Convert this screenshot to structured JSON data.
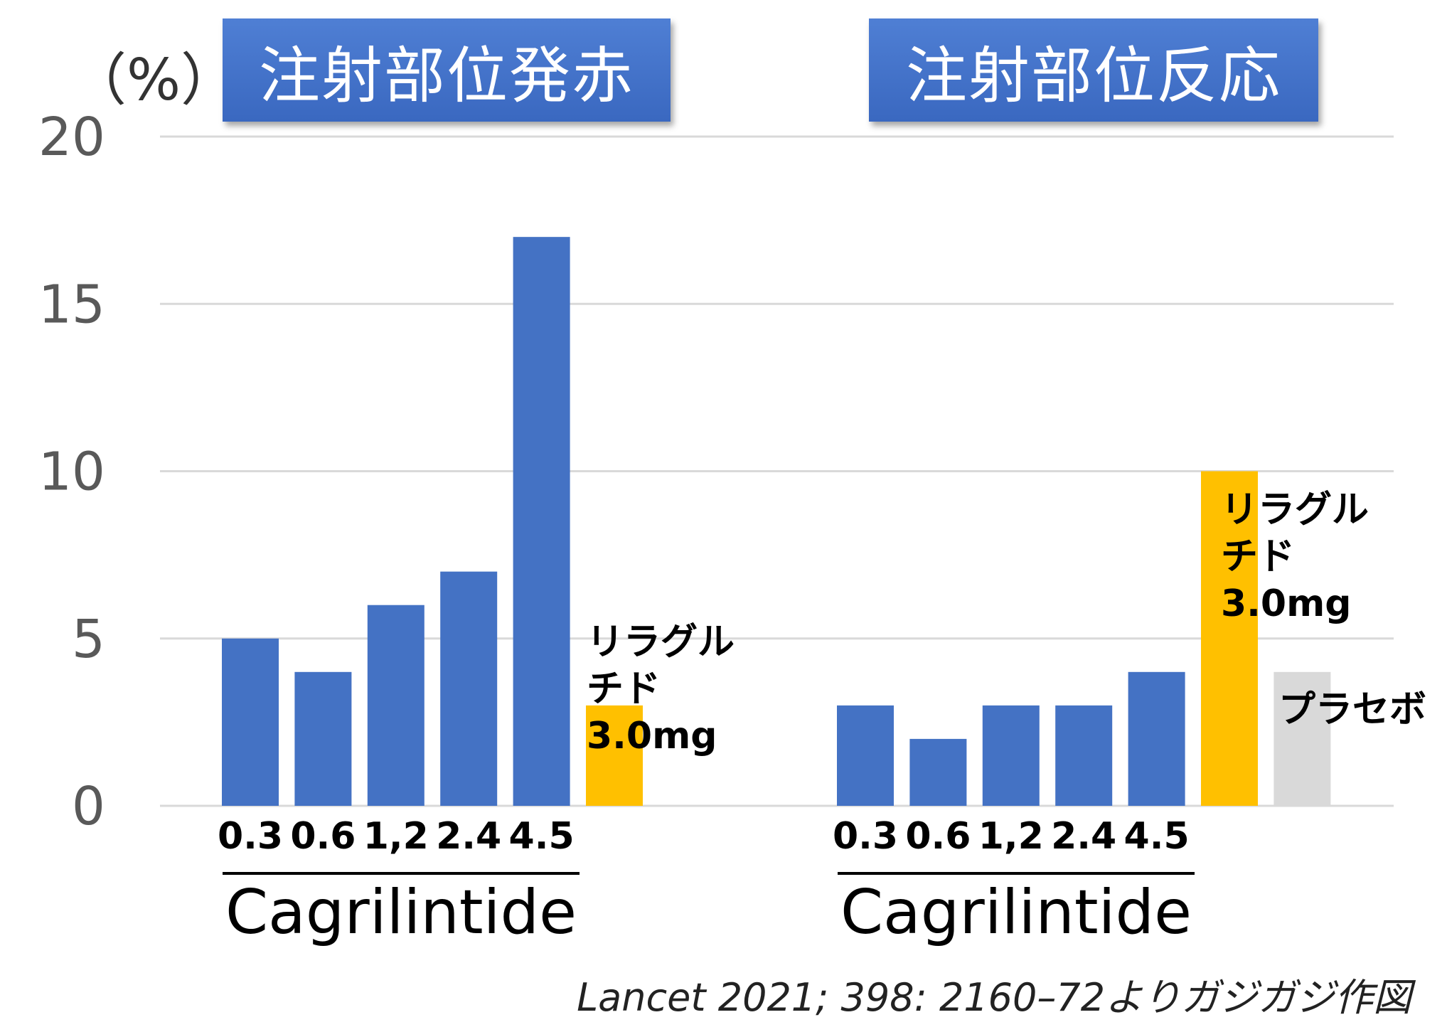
{
  "unit_label": "（%）",
  "source_note": "Lancet 2021; 398: 2160–72よりガジガジ作図",
  "colors": {
    "cagrilintide": "#4472c4",
    "liraglutide": "#ffc000",
    "placebo": "#d9d9d9",
    "grid": "#d9d9d9",
    "title_bg": "#4472c4"
  },
  "chart_data": {
    "type": "bar",
    "ylim": [
      0,
      20
    ],
    "yticks": [
      "0",
      "5",
      "10",
      "15",
      "20"
    ],
    "grid": true,
    "panels": [
      {
        "title": "注射部位発赤",
        "group_label": "Cagrilintide",
        "categories": [
          "0.3",
          "0.6",
          "1,2",
          "2.4",
          "4.5"
        ],
        "values": [
          5,
          4,
          6,
          7,
          17
        ],
        "extra_bars": [
          {
            "label": [
              "リラグル",
              "チド",
              "3.0mg"
            ],
            "value": 3,
            "color": "#ffc000"
          }
        ]
      },
      {
        "title": "注射部位反応",
        "group_label": "Cagrilintide",
        "categories": [
          "0.3",
          "0.6",
          "1,2",
          "2.4",
          "4.5"
        ],
        "values": [
          3,
          2,
          3,
          3,
          4
        ],
        "extra_bars": [
          {
            "label": [
              "リラグル",
              "チド",
              "3.0mg"
            ],
            "value": 10,
            "color": "#ffc000"
          },
          {
            "label": [
              "プラセボ"
            ],
            "value": 4,
            "color": "#d9d9d9"
          }
        ]
      }
    ]
  }
}
